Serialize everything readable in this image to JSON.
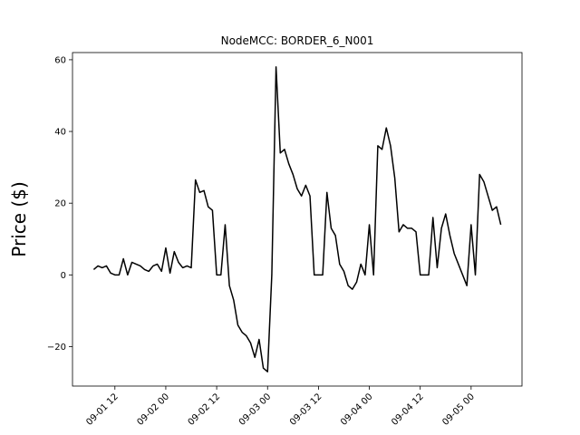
{
  "chart_data": {
    "type": "line",
    "title": "NodeMCC: BORDER_6_N001",
    "ylabel": "Price ($)",
    "color": "#000000",
    "x": [
      "09-01 07",
      "09-01 08",
      "09-01 09",
      "09-01 10",
      "09-01 11",
      "09-01 12",
      "09-01 13",
      "09-01 14",
      "09-01 15",
      "09-01 16",
      "09-01 17",
      "09-01 18",
      "09-01 19",
      "09-01 20",
      "09-01 21",
      "09-01 22",
      "09-01 23",
      "09-02 00",
      "09-02 01",
      "09-02 02",
      "09-02 03",
      "09-02 04",
      "09-02 05",
      "09-02 06",
      "09-02 07",
      "09-02 08",
      "09-02 09",
      "09-02 10",
      "09-02 11",
      "09-02 12",
      "09-02 13",
      "09-02 14",
      "09-02 15",
      "09-02 16",
      "09-02 17",
      "09-02 18",
      "09-02 19",
      "09-02 20",
      "09-02 21",
      "09-02 22",
      "09-02 23",
      "09-03 00",
      "09-03 01",
      "09-03 02",
      "09-03 03",
      "09-03 04",
      "09-03 05",
      "09-03 06",
      "09-03 07",
      "09-03 08",
      "09-03 09",
      "09-03 10",
      "09-03 11",
      "09-03 12",
      "09-03 13",
      "09-03 14",
      "09-03 15",
      "09-03 16",
      "09-03 17",
      "09-03 18",
      "09-03 19",
      "09-03 20",
      "09-03 21",
      "09-03 22",
      "09-03 23",
      "09-04 00",
      "09-04 01",
      "09-04 02",
      "09-04 03",
      "09-04 04",
      "09-04 05",
      "09-04 06",
      "09-04 07",
      "09-04 08",
      "09-04 09",
      "09-04 10",
      "09-04 11",
      "09-04 12",
      "09-04 13",
      "09-04 14",
      "09-04 15",
      "09-04 16",
      "09-04 17",
      "09-04 18",
      "09-04 19",
      "09-04 20",
      "09-04 21",
      "09-04 22",
      "09-04 23",
      "09-05 00",
      "09-05 01",
      "09-05 02",
      "09-05 03",
      "09-05 04",
      "09-05 05",
      "09-05 06",
      "09-05 07"
    ],
    "values": [
      1.5,
      2.5,
      2,
      2.5,
      0.5,
      0,
      0,
      4.5,
      0,
      3.5,
      3,
      2.5,
      1.5,
      1,
      2.5,
      3,
      1,
      7.5,
      0.5,
      6.5,
      3.5,
      2,
      2.5,
      2,
      26.5,
      23,
      23.5,
      19,
      18,
      0,
      0,
      14,
      -3,
      -7,
      -14,
      -16,
      -17,
      -19,
      -23,
      -18,
      -26,
      -27,
      0,
      58,
      34,
      35,
      31,
      28,
      24,
      22,
      25,
      22,
      0,
      0,
      0,
      23,
      13,
      11,
      3,
      1,
      -3,
      -4,
      -2,
      3,
      0,
      14,
      0,
      36,
      35,
      41,
      36,
      27,
      12,
      14,
      13,
      13,
      12,
      0,
      0,
      0,
      16,
      2,
      13,
      17,
      11,
      6,
      3,
      0,
      -3,
      14,
      0,
      28,
      26,
      22,
      18,
      19,
      14
    ],
    "xlim": [
      "09-01 02",
      "09-05 12"
    ],
    "xticks": [
      "09-01 12",
      "09-02 00",
      "09-02 12",
      "09-03 00",
      "09-03 12",
      "09-04 00",
      "09-04 12",
      "09-05 00"
    ],
    "ylim": [
      -31,
      62
    ],
    "yticks": [
      {
        "value": -20,
        "label": "−20"
      },
      0,
      20,
      40,
      60
    ]
  }
}
